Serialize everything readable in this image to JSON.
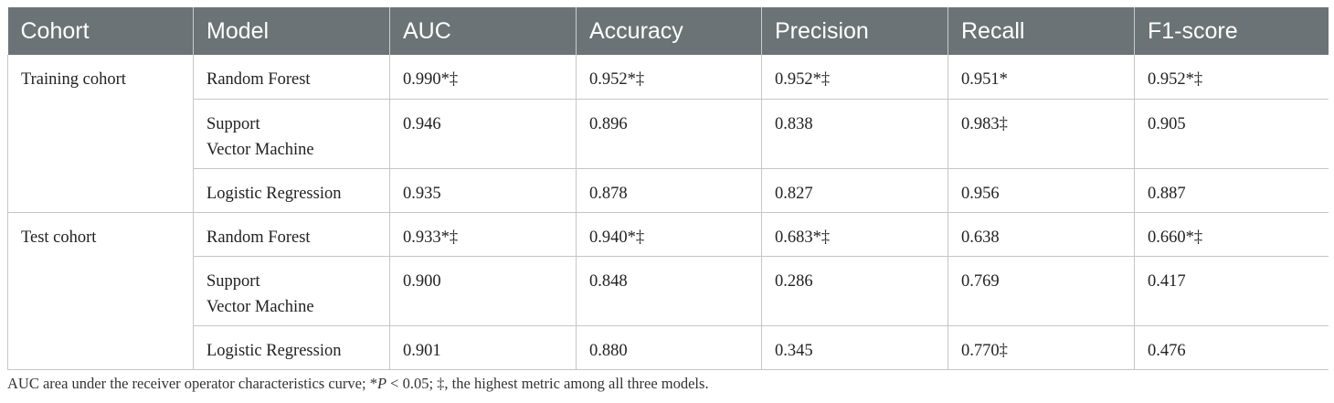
{
  "table": {
    "headers": [
      "Cohort",
      "Model",
      "AUC",
      "Accuracy",
      "Precision",
      "Recall",
      "F1-score"
    ],
    "groups": [
      {
        "cohort": "Training cohort",
        "rows": [
          {
            "model": [
              "Random Forest"
            ],
            "auc": "0.990*‡",
            "accuracy": "0.952*‡",
            "precision": "0.952*‡",
            "recall": "0.951*",
            "f1": "0.952*‡"
          },
          {
            "model": [
              "Support",
              "Vector Machine"
            ],
            "auc": "0.946",
            "accuracy": "0.896",
            "precision": "0.838",
            "recall": "0.983‡",
            "f1": "0.905"
          },
          {
            "model": [
              "Logistic Regression"
            ],
            "auc": "0.935",
            "accuracy": "0.878",
            "precision": "0.827",
            "recall": "0.956",
            "f1": "0.887"
          }
        ]
      },
      {
        "cohort": "Test cohort",
        "rows": [
          {
            "model": [
              "Random Forest"
            ],
            "auc": "0.933*‡",
            "accuracy": "0.940*‡",
            "precision": "0.683*‡",
            "recall": "0.638",
            "f1": "0.660*‡"
          },
          {
            "model": [
              "Support",
              "Vector Machine"
            ],
            "auc": "0.900",
            "accuracy": "0.848",
            "precision": "0.286",
            "recall": "0.769",
            "f1": "0.417"
          },
          {
            "model": [
              "Logistic Regression"
            ],
            "auc": "0.901",
            "accuracy": "0.880",
            "precision": "0.345",
            "recall": "0.770‡",
            "f1": "0.476"
          }
        ]
      }
    ]
  },
  "footnote": {
    "part1": "AUC area under the receiver operator characteristics curve; *",
    "p_symbol": "P",
    "part2": " < 0.05; ‡, the highest metric among all three models."
  },
  "colors": {
    "header_bg": "#6b7377",
    "header_text": "#ffffff",
    "grid": "#c6c6c6"
  }
}
